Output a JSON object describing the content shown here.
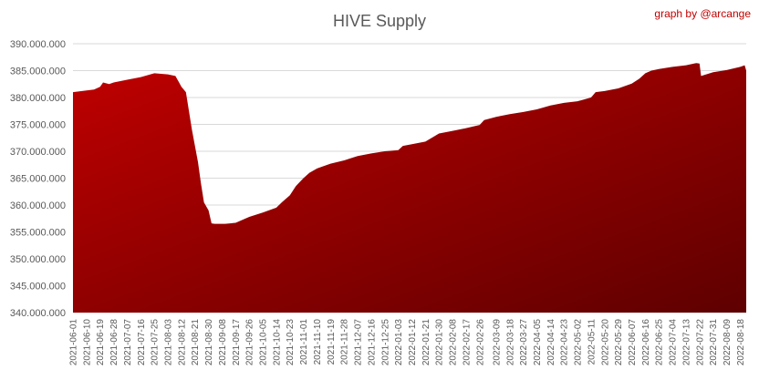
{
  "chart_data": {
    "type": "area",
    "title": "HIVE Supply",
    "credit": "graph by @arcange",
    "xlabel": "",
    "ylabel": "",
    "ylim": [
      340000000,
      390000000
    ],
    "y_ticks": [
      340000000,
      345000000,
      350000000,
      355000000,
      360000000,
      365000000,
      370000000,
      375000000,
      380000000,
      385000000,
      390000000
    ],
    "y_tick_labels": [
      "340.000.000",
      "345.000.000",
      "350.000.000",
      "355.000.000",
      "360.000.000",
      "365.000.000",
      "370.000.000",
      "375.000.000",
      "380.000.000",
      "385.000.000",
      "390.000.000"
    ],
    "x_tick_labels": [
      "2021-06-01",
      "2021-06-10",
      "2021-06-19",
      "2021-06-28",
      "2021-07-07",
      "2021-07-16",
      "2021-07-25",
      "2021-08-03",
      "2021-08-12",
      "2021-08-21",
      "2021-08-30",
      "2021-09-08",
      "2021-09-17",
      "2021-09-26",
      "2021-10-05",
      "2021-10-14",
      "2021-10-23",
      "2021-11-01",
      "2021-11-10",
      "2021-11-19",
      "2021-11-28",
      "2021-12-07",
      "2021-12-16",
      "2021-12-25",
      "2022-01-03",
      "2022-01-12",
      "2022-01-21",
      "2022-01-30",
      "2022-02-08",
      "2022-02-17",
      "2022-02-26",
      "2022-03-09",
      "2022-03-18",
      "2022-03-27",
      "2022-04-05",
      "2022-04-14",
      "2022-04-23",
      "2022-05-02",
      "2022-05-11",
      "2022-05-20",
      "2022-05-29",
      "2022-06-07",
      "2022-06-16",
      "2022-06-25",
      "2022-07-04",
      "2022-07-13",
      "2022-07-22",
      "2022-07-31",
      "2022-08-09",
      "2022-08-18"
    ],
    "grid": true,
    "legend": "none",
    "fill_color_top": "#c00000",
    "fill_color_bottom": "#5e0000",
    "x": [
      "2021-06-01",
      "2021-06-10",
      "2021-06-15",
      "2021-06-19",
      "2021-06-21",
      "2021-06-25",
      "2021-06-28",
      "2021-07-07",
      "2021-07-16",
      "2021-07-25",
      "2021-08-03",
      "2021-08-08",
      "2021-08-10",
      "2021-08-12",
      "2021-08-15",
      "2021-08-17",
      "2021-08-19",
      "2021-08-21",
      "2021-08-23",
      "2021-08-25",
      "2021-08-27",
      "2021-08-30",
      "2021-09-01",
      "2021-09-03",
      "2021-09-05",
      "2021-09-08",
      "2021-09-10",
      "2021-09-17",
      "2021-09-26",
      "2021-10-05",
      "2021-10-14",
      "2021-10-18",
      "2021-10-23",
      "2021-10-27",
      "2021-11-01",
      "2021-11-05",
      "2021-11-10",
      "2021-11-14",
      "2021-11-19",
      "2021-11-28",
      "2021-12-07",
      "2021-12-16",
      "2021-12-25",
      "2022-01-03",
      "2022-01-06",
      "2022-01-12",
      "2022-01-21",
      "2022-01-27",
      "2022-01-30",
      "2022-02-08",
      "2022-02-17",
      "2022-02-26",
      "2022-03-01",
      "2022-03-09",
      "2022-03-18",
      "2022-03-27",
      "2022-04-05",
      "2022-04-14",
      "2022-04-23",
      "2022-05-02",
      "2022-05-11",
      "2022-05-14",
      "2022-05-20",
      "2022-05-29",
      "2022-06-07",
      "2022-06-12",
      "2022-06-16",
      "2022-06-20",
      "2022-06-25",
      "2022-07-04",
      "2022-07-13",
      "2022-07-20",
      "2022-07-22",
      "2022-07-23",
      "2022-07-31",
      "2022-08-09",
      "2022-08-18",
      "2022-08-21",
      "2022-08-22"
    ],
    "values": [
      381000000,
      381300000,
      381500000,
      382000000,
      382800000,
      382500000,
      382800000,
      383300000,
      383800000,
      384500000,
      384300000,
      384000000,
      383000000,
      382000000,
      381000000,
      377500000,
      374000000,
      371000000,
      368000000,
      364000000,
      360500000,
      359000000,
      356600000,
      356500000,
      356500000,
      356500000,
      356500000,
      356700000,
      357800000,
      358600000,
      359500000,
      360600000,
      361800000,
      363500000,
      365000000,
      366000000,
      366800000,
      367200000,
      367700000,
      368300000,
      369100000,
      369600000,
      370000000,
      370200000,
      371000000,
      371300000,
      371800000,
      372800000,
      373300000,
      373800000,
      374300000,
      374900000,
      375800000,
      376400000,
      376900000,
      377300000,
      377800000,
      378500000,
      379000000,
      379300000,
      380000000,
      381000000,
      381200000,
      381700000,
      382600000,
      383500000,
      384500000,
      385000000,
      385300000,
      385700000,
      386000000,
      386400000,
      386300000,
      384000000,
      384700000,
      385100000,
      385700000,
      386000000,
      385000000
    ]
  }
}
